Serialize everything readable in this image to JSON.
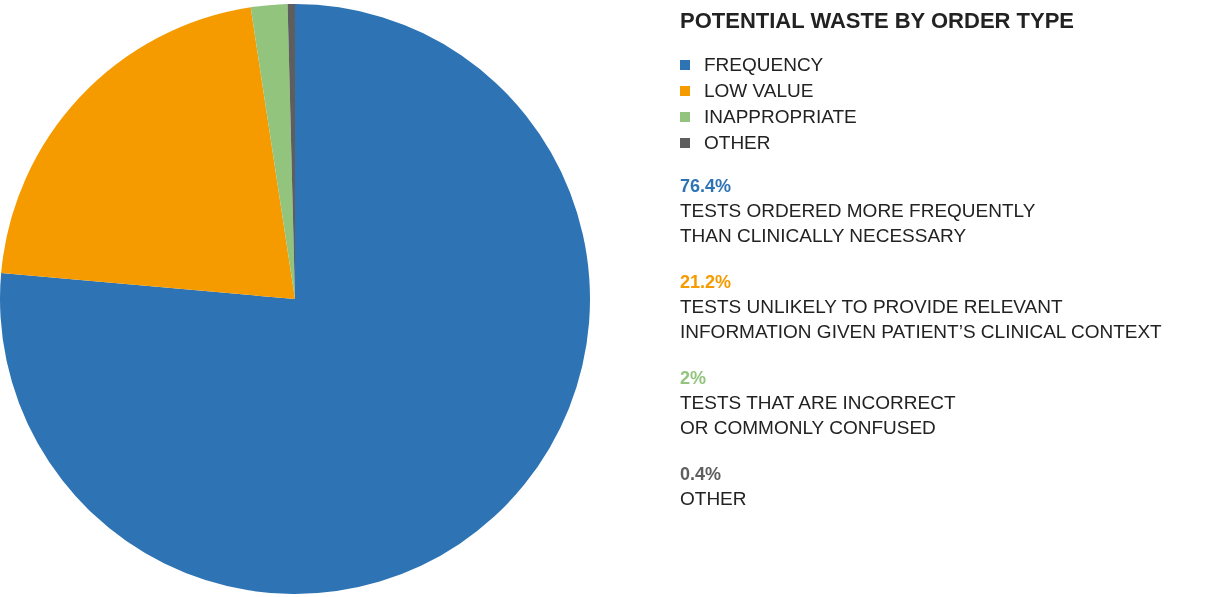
{
  "chart_data": {
    "type": "pie",
    "title": "POTENTIAL WASTE BY ORDER TYPE",
    "categories": [
      "FREQUENCY",
      "LOW VALUE",
      "INAPPROPRIATE",
      "OTHER"
    ],
    "values": [
      76.4,
      21.2,
      2,
      0.4
    ],
    "colors": [
      "#2e74b5",
      "#f59b00",
      "#93c47d",
      "#5e5e5e"
    ],
    "annotations": [
      "76.4%",
      "TESTS ORDERED MORE FREQUENTLY\nTHAN CLINICALLY NECESSARY",
      "21.2%",
      "TESTS UNLIKELY TO PROVIDE RELEVANT\nINFORMATION GIVEN PATIENT’S CLINICAL CONTEXT",
      "2%",
      "TESTS THAT ARE INCORRECT\nOR COMMONLY CONFUSED",
      "0.4%",
      "OTHER"
    ],
    "legend": "right"
  }
}
